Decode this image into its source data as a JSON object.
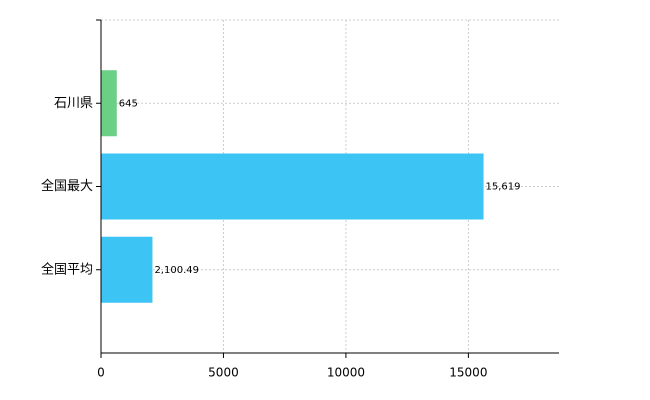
{
  "chart_data": {
    "type": "hbar",
    "categories": [
      "石川県",
      "全国最大",
      "全国平均"
    ],
    "values": [
      645,
      15619,
      2100.49
    ],
    "value_labels": [
      "645",
      "15,619",
      "2,100.49"
    ],
    "colors": [
      "#6ccf86",
      "#3cc4f4",
      "#3cc4f4"
    ],
    "xlim": [
      0,
      18700
    ],
    "xticks": [
      0,
      5000,
      10000,
      15000
    ],
    "grid": true
  }
}
